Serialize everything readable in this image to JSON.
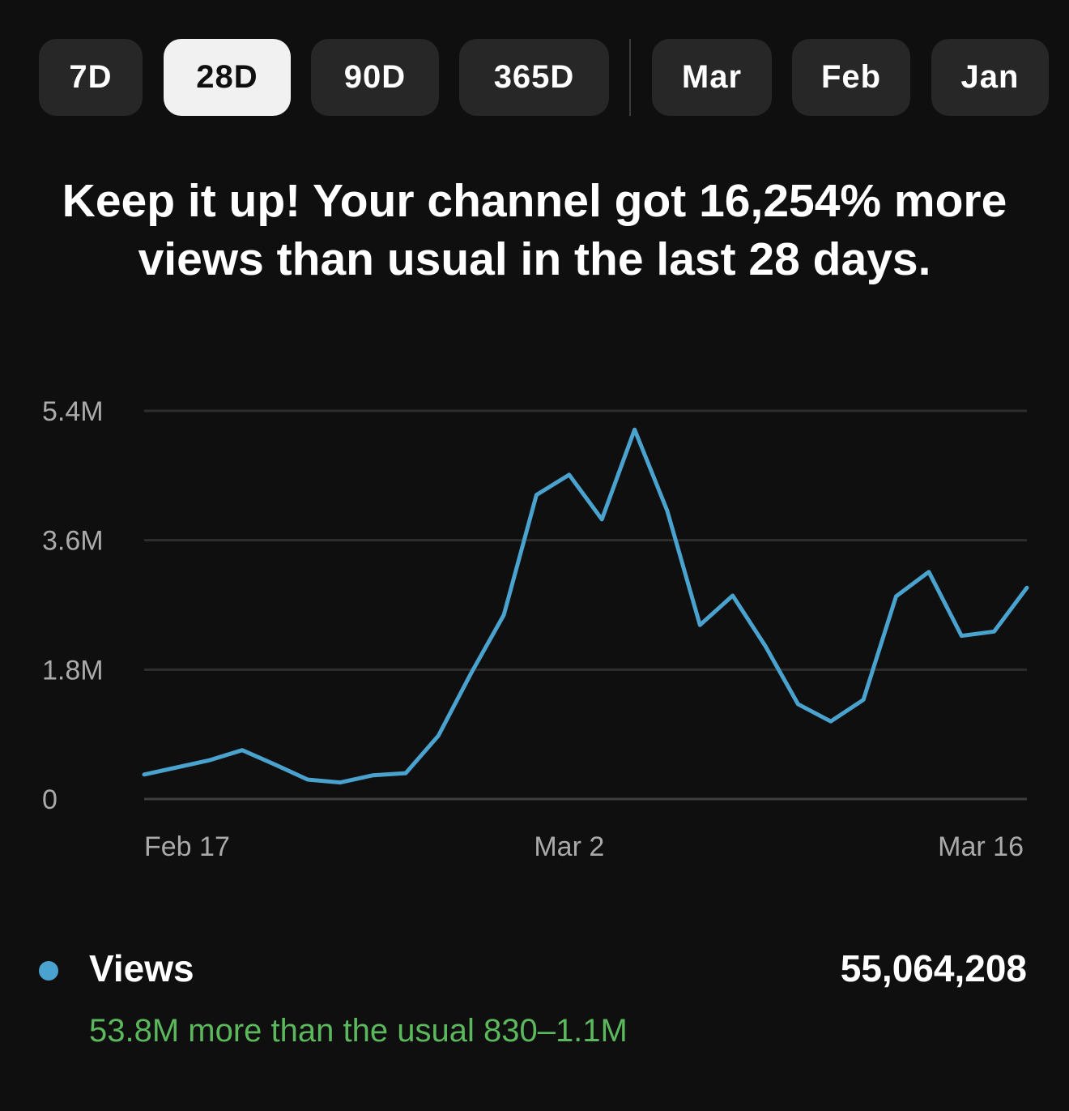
{
  "tabs": [
    {
      "label": "7D",
      "selected": false
    },
    {
      "label": "28D",
      "selected": true
    },
    {
      "label": "90D",
      "selected": false
    },
    {
      "label": "365D",
      "selected": false
    },
    {
      "label": "Mar",
      "selected": false
    },
    {
      "label": "Feb",
      "selected": false
    },
    {
      "label": "Jan",
      "selected": false
    }
  ],
  "headline": "Keep it up! Your channel got 16,254% more views than usual in the last 28 days.",
  "chart_data": {
    "type": "line",
    "x": [
      "Feb 17",
      "Feb 18",
      "Feb 19",
      "Feb 20",
      "Feb 21",
      "Feb 22",
      "Feb 23",
      "Feb 24",
      "Feb 25",
      "Feb 26",
      "Feb 27",
      "Feb 28",
      "Mar 1",
      "Mar 2",
      "Mar 3",
      "Mar 4",
      "Mar 5",
      "Mar 6",
      "Mar 7",
      "Mar 8",
      "Mar 9",
      "Mar 10",
      "Mar 11",
      "Mar 12",
      "Mar 13",
      "Mar 14",
      "Mar 15",
      "Mar 16"
    ],
    "series": [
      {
        "name": "Views",
        "color": "#4aa3cf",
        "values": [
          0.34,
          0.44,
          0.54,
          0.68,
          0.48,
          0.27,
          0.23,
          0.33,
          0.36,
          0.88,
          1.75,
          2.56,
          4.23,
          4.51,
          3.89,
          5.14,
          4.01,
          2.42,
          2.83,
          2.13,
          1.32,
          1.08,
          1.38,
          2.82,
          3.16,
          2.27,
          2.33,
          2.94
        ]
      }
    ],
    "x_ticks": [
      "Feb 17",
      "Mar 2",
      "Mar 16"
    ],
    "y_ticks": [
      "0",
      "1.8M",
      "3.6M",
      "5.4M"
    ],
    "y_tick_values": [
      0,
      1.8,
      3.6,
      5.4
    ],
    "ylim": [
      0,
      5.4
    ],
    "grid": true
  },
  "legend": {
    "label": "Views",
    "dot_color": "#4aa3cf",
    "total": "55,064,208",
    "note": "53.8M more than the usual 830–1.1M",
    "note_color": "#5cb85c"
  }
}
